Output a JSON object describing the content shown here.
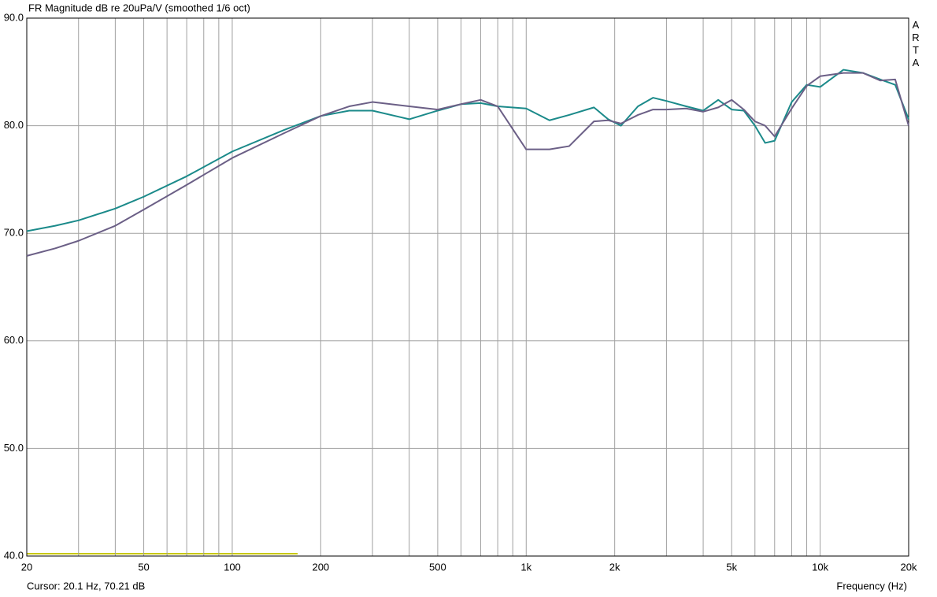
{
  "chart_data": {
    "type": "line",
    "title": "FR Magnitude dB re 20uPa/V (smoothed 1/6 oct)",
    "x_label": "Frequency (Hz)",
    "cursor": "Cursor: 20.1 Hz, 70.21 dB",
    "watermark": "ARTA",
    "x_log": true,
    "grid": true,
    "x": [
      20,
      25,
      30,
      40,
      50,
      70,
      100,
      150,
      200,
      250,
      300,
      400,
      500,
      600,
      700,
      800,
      1000,
      1200,
      1400,
      1700,
      1900,
      2100,
      2400,
      2700,
      3000,
      3500,
      4000,
      4500,
      5000,
      5500,
      6000,
      6500,
      7000,
      8000,
      9000,
      10000,
      12000,
      14000,
      16000,
      18000,
      20000
    ],
    "series": [
      {
        "color": "#1b8a8a",
        "values": [
          70.2,
          70.7,
          71.2,
          72.3,
          73.4,
          75.3,
          77.6,
          79.6,
          80.9,
          81.4,
          81.4,
          80.6,
          81.4,
          82.0,
          82.1,
          81.8,
          81.6,
          80.5,
          81.0,
          81.7,
          80.6,
          80.0,
          81.8,
          82.6,
          82.3,
          81.8,
          81.4,
          82.4,
          81.5,
          81.4,
          80.0,
          78.4,
          78.6,
          82.2,
          83.8,
          83.6,
          85.2,
          84.9,
          84.3,
          83.8,
          80.6
        ]
      },
      {
        "color": "#6b5f86",
        "values": [
          67.9,
          68.6,
          69.3,
          70.7,
          72.2,
          74.5,
          77.0,
          79.3,
          80.9,
          81.8,
          82.2,
          81.8,
          81.5,
          82.0,
          82.4,
          81.8,
          77.8,
          77.8,
          78.1,
          80.4,
          80.5,
          80.2,
          81.0,
          81.5,
          81.5,
          81.6,
          81.3,
          81.7,
          82.4,
          81.5,
          80.4,
          80.0,
          79.0,
          81.6,
          83.7,
          84.6,
          84.9,
          84.9,
          84.2,
          84.3,
          80.0
        ]
      }
    ],
    "xlim": [
      20,
      20000
    ],
    "xticks": [
      20,
      50,
      100,
      200,
      500,
      {
        "value": 1000,
        "label": "1k"
      },
      {
        "value": 2000,
        "label": "2k"
      },
      {
        "value": 5000,
        "label": "5k"
      },
      {
        "value": 10000,
        "label": "10k"
      },
      {
        "value": 20000,
        "label": "20k"
      }
    ],
    "x_minor_grid": [
      30,
      40,
      60,
      70,
      80,
      90,
      300,
      400,
      600,
      700,
      800,
      900,
      3000,
      4000,
      6000,
      7000,
      8000,
      9000
    ],
    "ylim": [
      40,
      90
    ],
    "yticks": [
      {
        "value": 40,
        "label": "40.0"
      },
      {
        "value": 50,
        "label": "50.0"
      },
      {
        "value": 60,
        "label": "60.0"
      },
      {
        "value": 70,
        "label": "70.0"
      },
      {
        "value": 80,
        "label": "80.0"
      },
      {
        "value": 90,
        "label": "90.0"
      }
    ]
  }
}
